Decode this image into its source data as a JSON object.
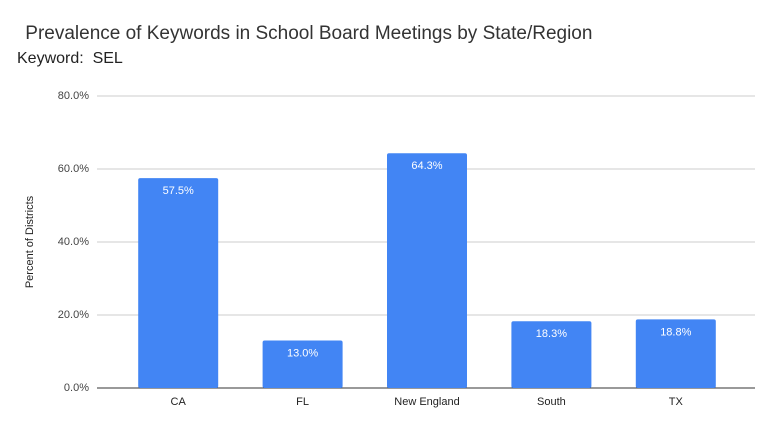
{
  "chart_data": {
    "type": "bar",
    "title": " Prevalence of Keywords in School Board Meetings by State/Region",
    "subtitle": "Keyword:  SEL",
    "ylabel": "Percent of Districts",
    "categories": [
      "CA",
      "FL",
      "New England",
      "South",
      "TX"
    ],
    "values": [
      57.5,
      13.0,
      64.3,
      18.3,
      18.8
    ],
    "value_labels": [
      "57.5%",
      "13.0%",
      "64.3%",
      "18.3%",
      "18.8%"
    ],
    "color": "#4285f4",
    "ylim": [
      0,
      80
    ],
    "yticks": [
      {
        "value": 0,
        "label": "0.0%"
      },
      {
        "value": 20,
        "label": "20.0%"
      },
      {
        "value": 40,
        "label": "40.0%"
      },
      {
        "value": 60,
        "label": "60.0%"
      },
      {
        "value": 80,
        "label": "80.0%"
      }
    ],
    "grid": true
  }
}
